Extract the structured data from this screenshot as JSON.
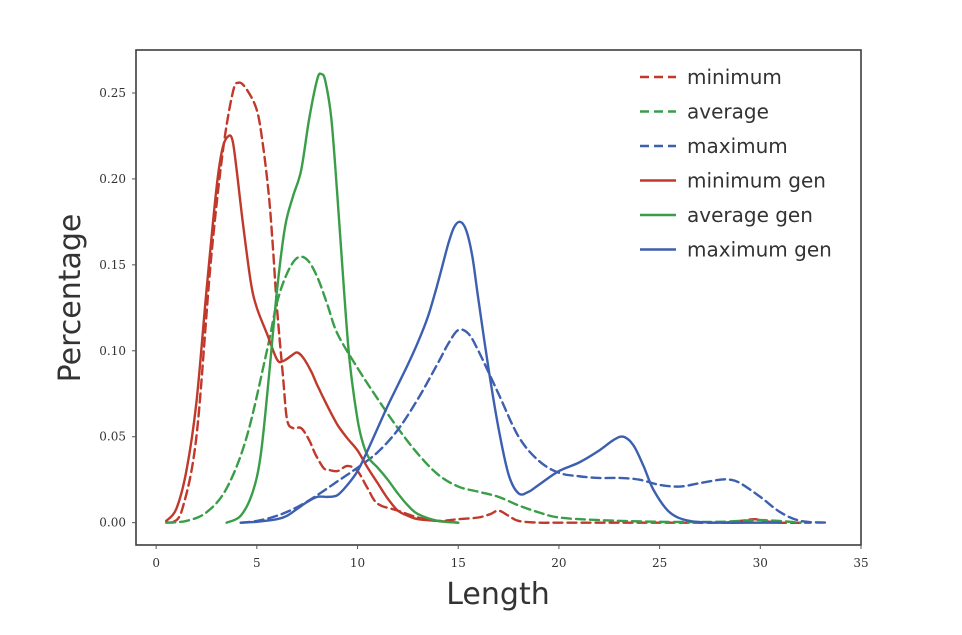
{
  "chart_data": {
    "type": "line",
    "title": "",
    "xlabel": "Length",
    "ylabel": "Percentage",
    "xlim": [
      -1,
      35
    ],
    "ylim": [
      -0.013,
      0.275
    ],
    "grid": false,
    "legend_position": "top-right",
    "x_ticks": [
      "0",
      "5",
      "10",
      "15",
      "20",
      "25",
      "30",
      "35"
    ],
    "y_ticks": [
      "0.00",
      "0.05",
      "0.10",
      "0.15",
      "0.20",
      "0.25"
    ],
    "series": [
      {
        "name": "minimum",
        "color": "#c0392b",
        "style": "dashed",
        "x": [
          0.8,
          1.3,
          2.0,
          2.7,
          3.3,
          3.8,
          4.1,
          4.5,
          5.0,
          5.3,
          5.6,
          5.8,
          6.0,
          6.3,
          6.5,
          6.8,
          7.2,
          7.6,
          7.9,
          8.3,
          8.5,
          9.0,
          9.5,
          10.0,
          10.5,
          11.0,
          12.0,
          13.0,
          14.0,
          15.0,
          16.0,
          16.6,
          17.0,
          17.5,
          18.0,
          19.0,
          20.0,
          23.0,
          26.0,
          28.0,
          29.0,
          29.7,
          30.2,
          31.0,
          32.5
        ],
        "values": [
          0.0,
          0.008,
          0.05,
          0.15,
          0.215,
          0.25,
          0.256,
          0.252,
          0.24,
          0.22,
          0.19,
          0.16,
          0.125,
          0.085,
          0.06,
          0.055,
          0.055,
          0.048,
          0.04,
          0.032,
          0.031,
          0.03,
          0.033,
          0.03,
          0.02,
          0.011,
          0.007,
          0.003,
          0.001,
          0.002,
          0.003,
          0.005,
          0.007,
          0.004,
          0.001,
          0.0,
          0.0,
          0.0,
          0.0,
          0.0,
          0.001,
          0.002,
          0.001,
          0.0,
          0.0
        ]
      },
      {
        "name": "average",
        "color": "#3a9e48",
        "style": "dashed",
        "x": [
          0.5,
          1.5,
          2.5,
          3.5,
          4.5,
          5.5,
          6.0,
          6.5,
          7.0,
          7.5,
          8.0,
          8.5,
          9.0,
          10.0,
          11.0,
          12.0,
          13.0,
          14.0,
          15.0,
          16.0,
          17.0,
          18.0,
          19.0,
          20.0,
          22.0,
          25.0,
          28.0,
          30.0,
          32.0
        ],
        "values": [
          0.0,
          0.001,
          0.006,
          0.02,
          0.05,
          0.1,
          0.128,
          0.145,
          0.154,
          0.153,
          0.143,
          0.127,
          0.11,
          0.09,
          0.072,
          0.055,
          0.04,
          0.028,
          0.021,
          0.018,
          0.015,
          0.01,
          0.006,
          0.003,
          0.0015,
          0.0005,
          0.0005,
          0.0015,
          0.0
        ]
      },
      {
        "name": "maximum",
        "color": "#3d5faf",
        "style": "dashed",
        "x": [
          4.2,
          5.0,
          6.0,
          7.0,
          8.0,
          9.0,
          10.0,
          11.0,
          12.0,
          13.0,
          14.0,
          14.5,
          15.0,
          15.5,
          16.0,
          17.0,
          18.0,
          19.0,
          20.0,
          21.0,
          22.0,
          23.0,
          24.0,
          25.0,
          26.0,
          27.0,
          28.0,
          28.5,
          29.0,
          30.0,
          31.0,
          32.0,
          33.3
        ],
        "values": [
          0.0,
          0.001,
          0.004,
          0.009,
          0.016,
          0.024,
          0.032,
          0.041,
          0.054,
          0.072,
          0.093,
          0.104,
          0.112,
          0.11,
          0.1,
          0.075,
          0.05,
          0.036,
          0.029,
          0.027,
          0.026,
          0.026,
          0.025,
          0.022,
          0.021,
          0.023,
          0.025,
          0.025,
          0.023,
          0.015,
          0.006,
          0.001,
          0.0
        ]
      },
      {
        "name": "minimum gen",
        "color": "#c0392b",
        "style": "solid",
        "x": [
          0.5,
          1.0,
          1.5,
          2.0,
          2.5,
          3.0,
          3.3,
          3.6,
          3.8,
          4.0,
          4.3,
          4.7,
          5.0,
          5.5,
          6.0,
          6.3,
          6.7,
          7.0,
          7.3,
          7.7,
          8.0,
          8.5,
          9.0,
          9.5,
          10.0,
          10.5,
          11.0,
          11.5,
          12.0,
          12.5,
          13.0,
          14.0,
          15.0
        ],
        "values": [
          0.001,
          0.008,
          0.03,
          0.07,
          0.135,
          0.195,
          0.218,
          0.225,
          0.222,
          0.205,
          0.175,
          0.14,
          0.125,
          0.11,
          0.095,
          0.094,
          0.097,
          0.099,
          0.096,
          0.088,
          0.08,
          0.068,
          0.057,
          0.049,
          0.042,
          0.032,
          0.023,
          0.014,
          0.007,
          0.004,
          0.002,
          0.001,
          0.0
        ]
      },
      {
        "name": "average gen",
        "color": "#3a9e48",
        "style": "solid",
        "x": [
          3.5,
          4.2,
          4.8,
          5.2,
          5.6,
          6.0,
          6.4,
          6.8,
          7.2,
          7.6,
          8.0,
          8.2,
          8.4,
          8.7,
          9.0,
          9.3,
          9.6,
          10.0,
          10.3,
          10.6,
          11.0,
          11.5,
          12.0,
          12.5,
          13.0,
          14.0,
          15.0
        ],
        "values": [
          0.0,
          0.004,
          0.018,
          0.04,
          0.085,
          0.135,
          0.172,
          0.19,
          0.205,
          0.235,
          0.258,
          0.261,
          0.257,
          0.235,
          0.19,
          0.14,
          0.095,
          0.06,
          0.045,
          0.037,
          0.032,
          0.025,
          0.017,
          0.01,
          0.005,
          0.001,
          0.0
        ]
      },
      {
        "name": "maximum gen",
        "color": "#3d5faf",
        "style": "solid",
        "x": [
          4.2,
          5.0,
          6.0,
          6.5,
          7.0,
          7.5,
          8.0,
          8.5,
          9.0,
          9.5,
          10.0,
          10.5,
          11.0,
          11.5,
          12.0,
          12.5,
          13.0,
          13.5,
          14.0,
          14.5,
          14.8,
          15.1,
          15.4,
          15.7,
          16.0,
          16.5,
          17.0,
          17.5,
          18.0,
          18.5,
          19.0,
          20.0,
          21.0,
          22.0,
          22.7,
          23.2,
          23.7,
          24.2,
          24.7,
          25.5,
          26.5,
          28.0,
          30.0,
          31.0
        ],
        "values": [
          0.0,
          0.0005,
          0.002,
          0.004,
          0.008,
          0.012,
          0.015,
          0.015,
          0.016,
          0.022,
          0.03,
          0.042,
          0.055,
          0.068,
          0.08,
          0.092,
          0.105,
          0.12,
          0.14,
          0.162,
          0.172,
          0.175,
          0.17,
          0.155,
          0.13,
          0.09,
          0.055,
          0.028,
          0.017,
          0.018,
          0.022,
          0.03,
          0.035,
          0.042,
          0.048,
          0.05,
          0.045,
          0.033,
          0.019,
          0.006,
          0.001,
          0.0,
          0.0,
          0.0
        ]
      }
    ]
  }
}
